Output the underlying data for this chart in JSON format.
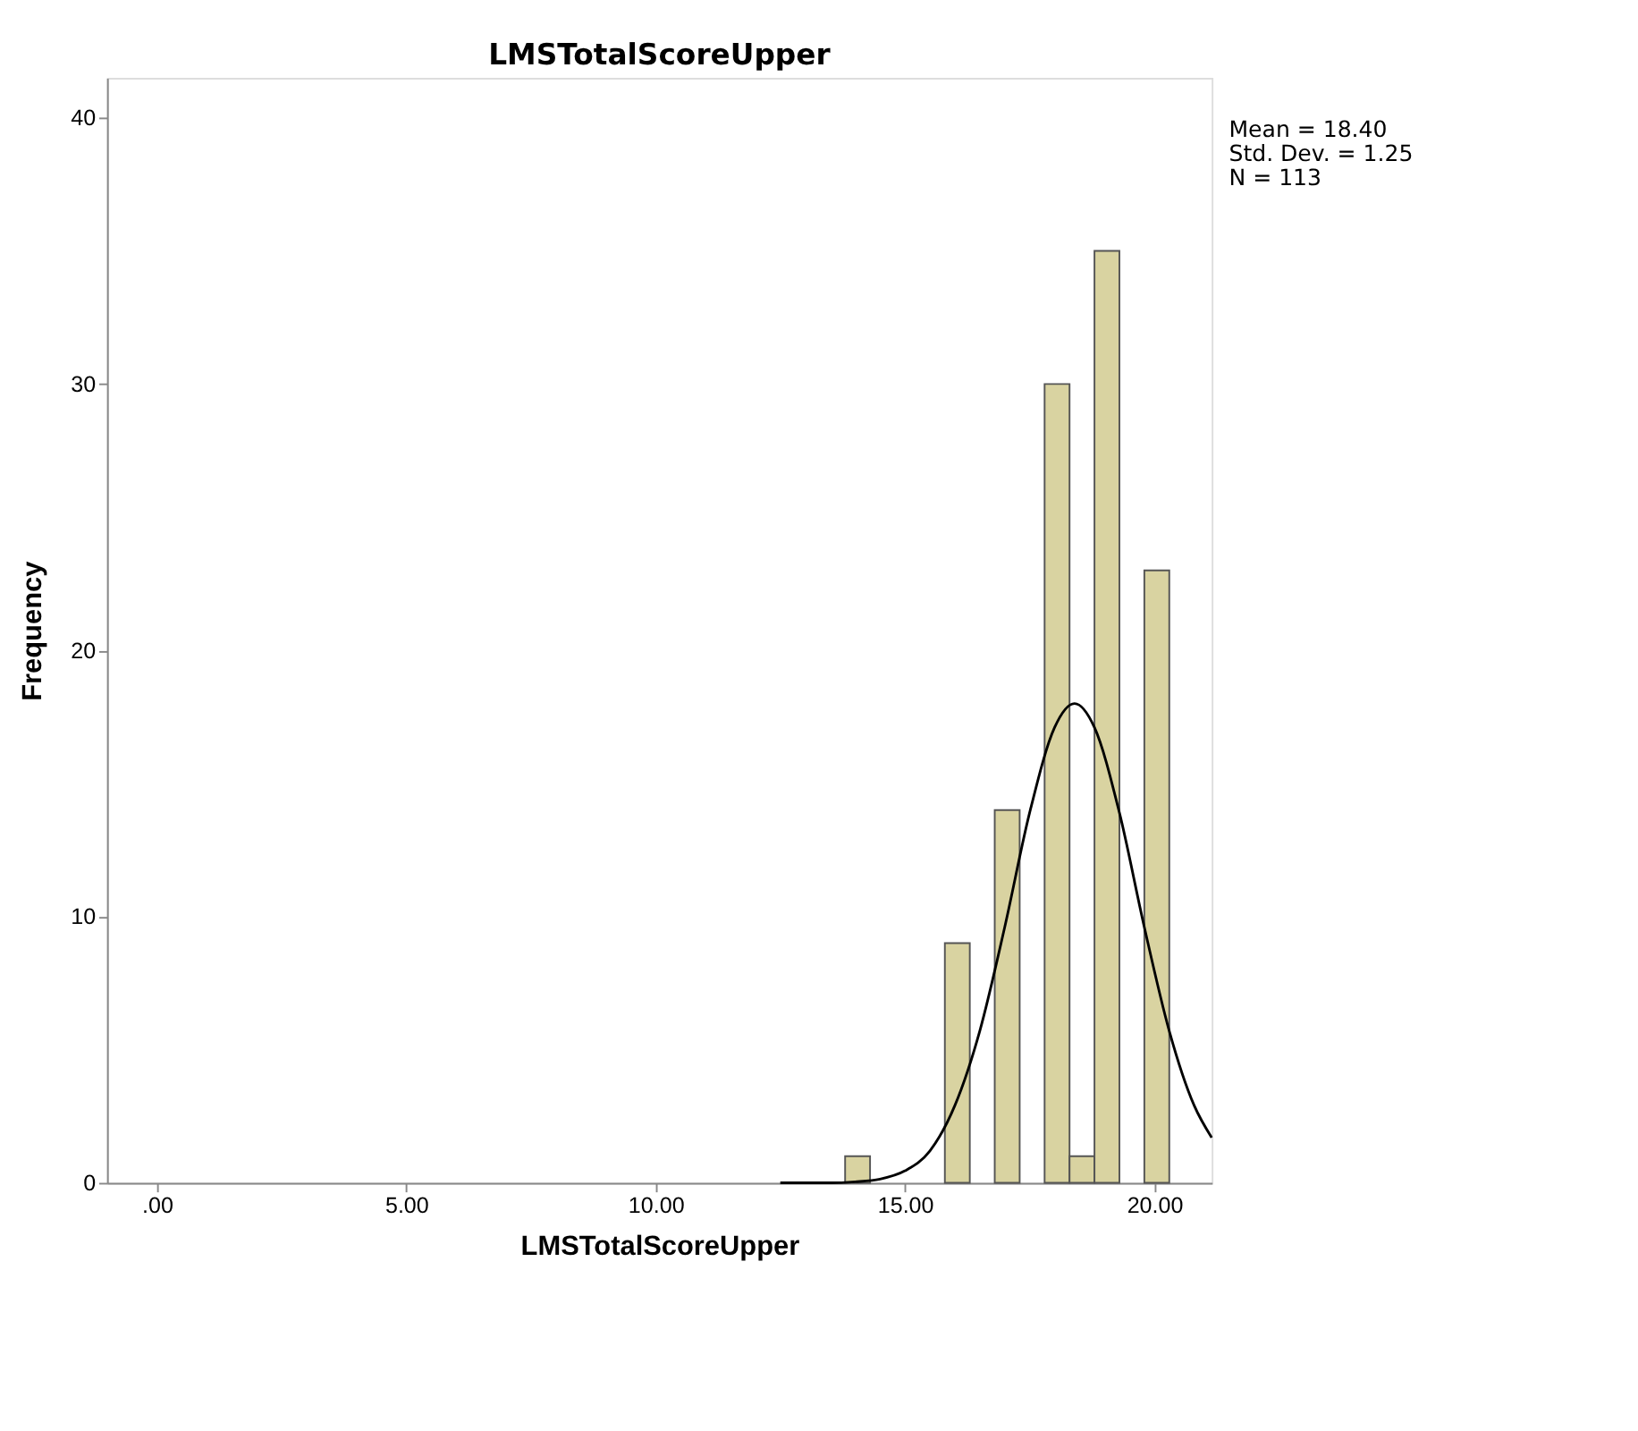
{
  "chart_data": {
    "type": "histogram",
    "title": "LMSTotalScoreUpper",
    "xlabel": "LMSTotalScoreUpper",
    "ylabel": "Frequency",
    "bins": [
      13.8,
      14.3,
      14.8,
      15.3,
      15.8,
      16.3,
      16.8,
      17.3,
      17.8,
      18.3,
      18.8,
      19.3,
      19.8,
      20.3
    ],
    "values": [
      1,
      0,
      0,
      0,
      9,
      0,
      14,
      0,
      30,
      1,
      35,
      0,
      23
    ],
    "color": "#d9d3a1",
    "series": [
      {
        "type": "line",
        "color": "#000000",
        "x": [
          12.5,
          13,
          13.5,
          14,
          14.5,
          15,
          15.5,
          16,
          16.5,
          17,
          17.5,
          18,
          18.4,
          18.8,
          19.3,
          19.8,
          20.3,
          20.8,
          21.15
        ],
        "values": [
          0,
          0,
          0,
          0.04,
          0.14,
          0.45,
          1.2,
          2.9,
          5.7,
          9.6,
          13.9,
          17.1,
          18.0,
          17.1,
          13.9,
          9.6,
          5.7,
          2.9,
          1.7
        ]
      }
    ],
    "xlim": [
      -1,
      21.15
    ],
    "xticks": [
      {
        "value": 0,
        "label": ".00"
      },
      {
        "value": 5,
        "label": "5.00"
      },
      {
        "value": 10,
        "label": "10.00"
      },
      {
        "value": 15,
        "label": "15.00"
      },
      {
        "value": 20,
        "label": "20.00"
      }
    ],
    "ylim": [
      0,
      41.5
    ],
    "yticks": [
      0,
      10,
      20,
      30,
      40
    ],
    "grid": false,
    "legend": false,
    "annotations": [
      "Mean = 18.40",
      "Std. Dev. = 1.25",
      "N = 113"
    ]
  }
}
